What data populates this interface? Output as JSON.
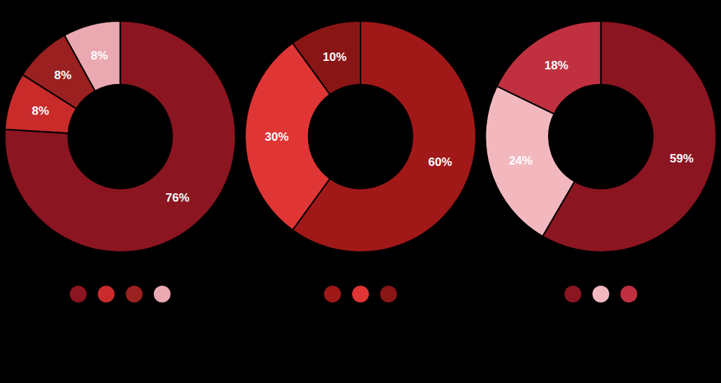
{
  "chart_data": [
    {
      "type": "pie",
      "values": [
        76,
        8,
        8,
        8
      ],
      "value_labels": [
        "76%",
        "8%",
        "8%",
        "8%"
      ],
      "colors": [
        "#8B1520",
        "#C92B2B",
        "#9B2020",
        "#EAA8B0"
      ],
      "data_labels": true,
      "legend": "bottom"
    },
    {
      "type": "pie",
      "values": [
        60,
        30,
        10
      ],
      "value_labels": [
        "60%",
        "30%",
        "10%"
      ],
      "colors": [
        "#A01818",
        "#E03535",
        "#8A1515"
      ],
      "data_labels": true,
      "legend": "bottom"
    },
    {
      "type": "pie",
      "values": [
        59,
        24,
        18
      ],
      "value_labels": [
        "59%",
        "24%",
        "18%"
      ],
      "colors": [
        "#8B1520",
        "#F2B8BE",
        "#C03040"
      ],
      "data_labels": true,
      "legend": "bottom"
    }
  ]
}
